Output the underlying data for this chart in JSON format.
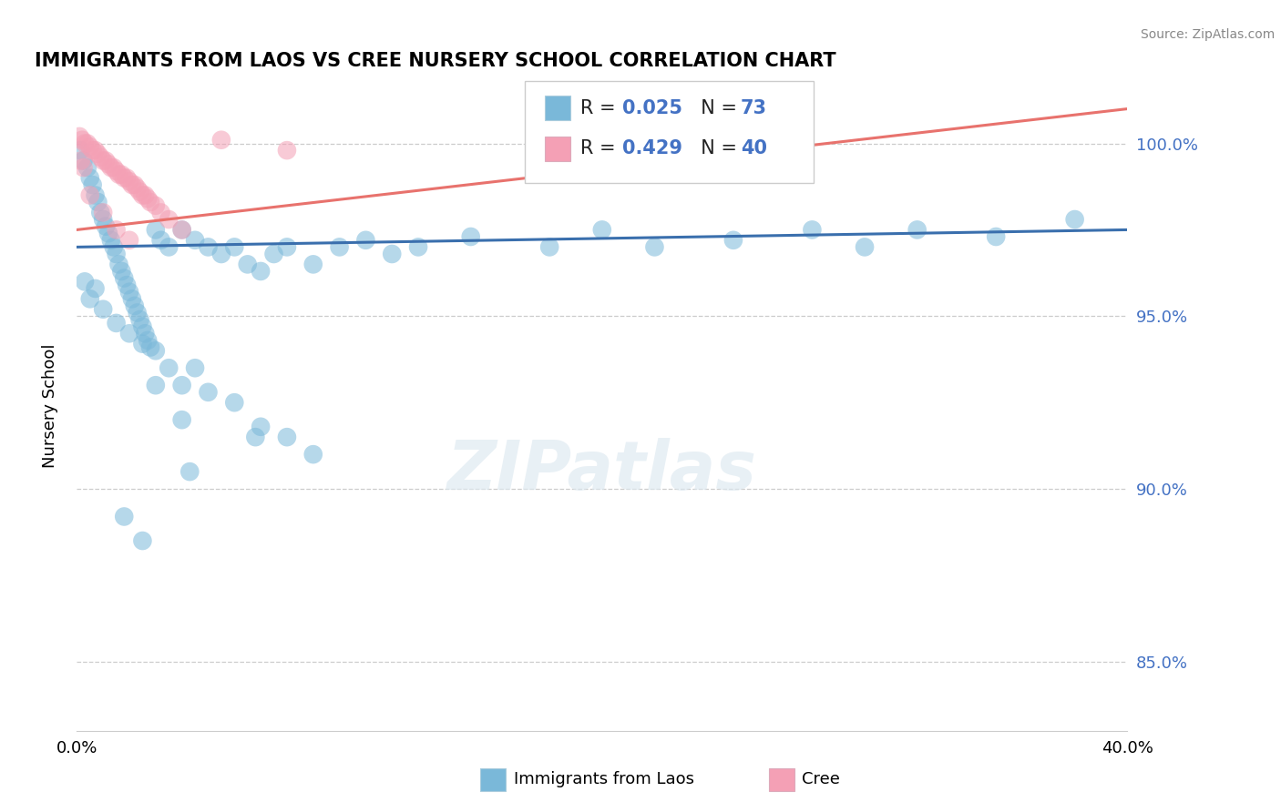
{
  "title": "IMMIGRANTS FROM LAOS VS CREE NURSERY SCHOOL CORRELATION CHART",
  "source": "Source: ZipAtlas.com",
  "ylabel": "Nursery School",
  "ytick_values": [
    85.0,
    90.0,
    95.0,
    100.0
  ],
  "xmin": 0.0,
  "xmax": 40.0,
  "ymin": 83.0,
  "ymax": 101.8,
  "blue_color": "#7ab8d9",
  "pink_color": "#f4a0b5",
  "trend_blue_color": "#3a6fad",
  "trend_pink_color": "#e8726d",
  "blue_dots": [
    [
      0.15,
      99.8
    ],
    [
      0.25,
      99.5
    ],
    [
      0.4,
      99.3
    ],
    [
      0.5,
      99.0
    ],
    [
      0.6,
      98.8
    ],
    [
      0.7,
      98.5
    ],
    [
      0.8,
      98.3
    ],
    [
      0.9,
      98.0
    ],
    [
      1.0,
      97.8
    ],
    [
      1.1,
      97.6
    ],
    [
      1.2,
      97.4
    ],
    [
      1.3,
      97.2
    ],
    [
      1.4,
      97.0
    ],
    [
      1.5,
      96.8
    ],
    [
      1.6,
      96.5
    ],
    [
      1.7,
      96.3
    ],
    [
      1.8,
      96.1
    ],
    [
      1.9,
      95.9
    ],
    [
      2.0,
      95.7
    ],
    [
      2.1,
      95.5
    ],
    [
      2.2,
      95.3
    ],
    [
      2.3,
      95.1
    ],
    [
      2.4,
      94.9
    ],
    [
      2.5,
      94.7
    ],
    [
      2.6,
      94.5
    ],
    [
      2.7,
      94.3
    ],
    [
      2.8,
      94.1
    ],
    [
      3.0,
      97.5
    ],
    [
      3.2,
      97.2
    ],
    [
      3.5,
      97.0
    ],
    [
      4.0,
      97.5
    ],
    [
      4.5,
      97.2
    ],
    [
      5.0,
      97.0
    ],
    [
      5.5,
      96.8
    ],
    [
      6.0,
      97.0
    ],
    [
      6.5,
      96.5
    ],
    [
      7.0,
      96.3
    ],
    [
      7.5,
      96.8
    ],
    [
      8.0,
      97.0
    ],
    [
      9.0,
      96.5
    ],
    [
      10.0,
      97.0
    ],
    [
      11.0,
      97.2
    ],
    [
      12.0,
      96.8
    ],
    [
      13.0,
      97.0
    ],
    [
      15.0,
      97.3
    ],
    [
      18.0,
      97.0
    ],
    [
      20.0,
      97.5
    ],
    [
      22.0,
      97.0
    ],
    [
      25.0,
      97.2
    ],
    [
      28.0,
      97.5
    ],
    [
      30.0,
      97.0
    ],
    [
      32.0,
      97.5
    ],
    [
      35.0,
      97.3
    ],
    [
      38.0,
      97.8
    ],
    [
      0.3,
      96.0
    ],
    [
      0.5,
      95.5
    ],
    [
      0.7,
      95.8
    ],
    [
      1.0,
      95.2
    ],
    [
      1.5,
      94.8
    ],
    [
      2.0,
      94.5
    ],
    [
      2.5,
      94.2
    ],
    [
      3.0,
      94.0
    ],
    [
      3.5,
      93.5
    ],
    [
      4.0,
      93.0
    ],
    [
      4.5,
      93.5
    ],
    [
      5.0,
      92.8
    ],
    [
      6.0,
      92.5
    ],
    [
      7.0,
      91.8
    ],
    [
      8.0,
      91.5
    ],
    [
      9.0,
      91.0
    ],
    [
      1.8,
      89.2
    ],
    [
      2.5,
      88.5
    ],
    [
      4.3,
      90.5
    ],
    [
      6.8,
      91.5
    ],
    [
      3.0,
      93.0
    ],
    [
      4.0,
      92.0
    ]
  ],
  "pink_dots": [
    [
      0.1,
      100.2
    ],
    [
      0.2,
      100.1
    ],
    [
      0.3,
      100.0
    ],
    [
      0.4,
      100.0
    ],
    [
      0.5,
      99.9
    ],
    [
      0.6,
      99.8
    ],
    [
      0.7,
      99.8
    ],
    [
      0.8,
      99.7
    ],
    [
      0.9,
      99.6
    ],
    [
      1.0,
      99.5
    ],
    [
      1.1,
      99.5
    ],
    [
      1.2,
      99.4
    ],
    [
      1.3,
      99.3
    ],
    [
      1.4,
      99.3
    ],
    [
      1.5,
      99.2
    ],
    [
      1.6,
      99.1
    ],
    [
      1.7,
      99.1
    ],
    [
      1.8,
      99.0
    ],
    [
      1.9,
      99.0
    ],
    [
      2.0,
      98.9
    ],
    [
      2.1,
      98.8
    ],
    [
      2.2,
      98.8
    ],
    [
      2.3,
      98.7
    ],
    [
      2.4,
      98.6
    ],
    [
      2.5,
      98.5
    ],
    [
      2.6,
      98.5
    ],
    [
      2.7,
      98.4
    ],
    [
      2.8,
      98.3
    ],
    [
      3.0,
      98.2
    ],
    [
      3.2,
      98.0
    ],
    [
      3.5,
      97.8
    ],
    [
      4.0,
      97.5
    ],
    [
      0.15,
      99.5
    ],
    [
      0.25,
      99.3
    ],
    [
      0.5,
      98.5
    ],
    [
      1.0,
      98.0
    ],
    [
      1.5,
      97.5
    ],
    [
      2.0,
      97.2
    ],
    [
      5.5,
      100.1
    ],
    [
      8.0,
      99.8
    ]
  ],
  "blue_trend_x": [
    0.0,
    40.0
  ],
  "blue_trend_y": [
    97.0,
    97.5
  ],
  "pink_trend_x": [
    0.0,
    40.0
  ],
  "pink_trend_y": [
    97.5,
    101.0
  ]
}
